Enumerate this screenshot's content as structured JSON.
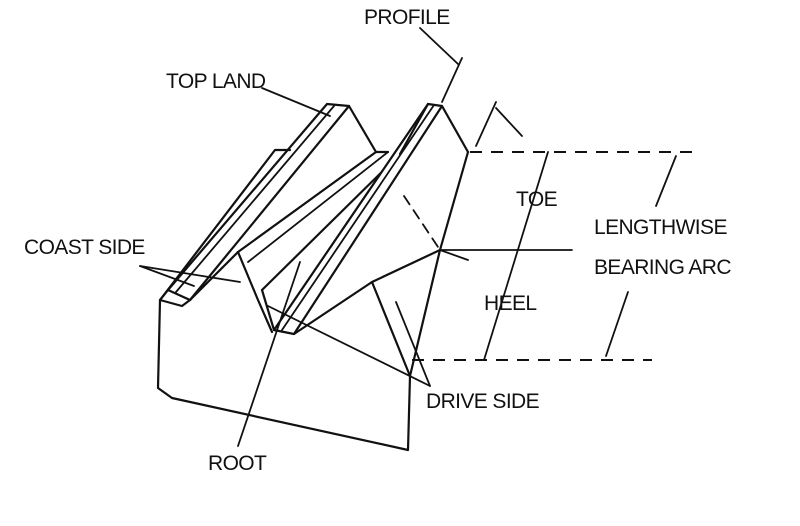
{
  "labels": {
    "profile": "PROFILE",
    "top_land": "TOP LAND",
    "coast_side": "COAST SIDE",
    "toe": "TOE",
    "lengthwise": "LENGTHWISE",
    "bearing_arc": "BEARING ARC",
    "heel": "HEEL",
    "drive_side": "DRIVE SIDE",
    "root": "ROOT"
  },
  "colors": {
    "ink": "#111111",
    "background": "#ffffff"
  }
}
